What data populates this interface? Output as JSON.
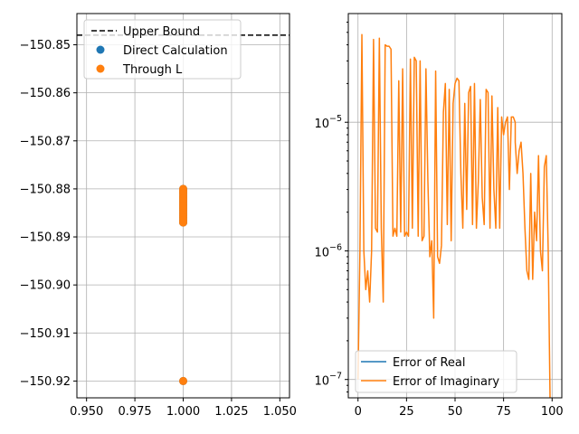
{
  "chart_data": [
    {
      "type": "scatter",
      "title": "",
      "xlabel": "",
      "ylabel": "",
      "xlim": [
        0.945,
        1.055
      ],
      "ylim": [
        -150.9235,
        -150.8435
      ],
      "xticks": [
        0.95,
        0.975,
        1.0,
        1.025,
        1.05
      ],
      "xtick_labels": [
        "0.950",
        "0.975",
        "1.000",
        "1.025",
        "1.050"
      ],
      "yticks": [
        -150.85,
        -150.86,
        -150.87,
        -150.88,
        -150.89,
        -150.9,
        -150.91,
        -150.92
      ],
      "ytick_labels": [
        "−150.85",
        "−150.86",
        "−150.87",
        "−150.88",
        "−150.89",
        "−150.90",
        "−150.91",
        "−150.92"
      ],
      "grid": true,
      "legend_position": "top-left",
      "reference_line": {
        "name": "Upper Bound",
        "y": -150.848,
        "color": "#000000",
        "style": "dashed"
      },
      "series": [
        {
          "name": "Direct Calculation",
          "color": "#1f77b4",
          "x": [
            1.0,
            1.0,
            1.0,
            1.0,
            1.0,
            1.0,
            1.0,
            1.0,
            1.0,
            1.0,
            1.0,
            1.0,
            1.0,
            1.0,
            1.0,
            1.0
          ],
          "y": [
            -150.88,
            -150.8805,
            -150.881,
            -150.8815,
            -150.882,
            -150.8825,
            -150.883,
            -150.8835,
            -150.884,
            -150.8845,
            -150.885,
            -150.8855,
            -150.886,
            -150.8865,
            -150.887,
            -150.92
          ]
        },
        {
          "name": "Through L",
          "color": "#ff7f0e",
          "x": [
            1.0,
            1.0,
            1.0,
            1.0,
            1.0,
            1.0,
            1.0,
            1.0,
            1.0,
            1.0,
            1.0,
            1.0,
            1.0,
            1.0,
            1.0,
            1.0
          ],
          "y": [
            -150.88,
            -150.8805,
            -150.881,
            -150.8815,
            -150.882,
            -150.8825,
            -150.883,
            -150.8835,
            -150.884,
            -150.8845,
            -150.885,
            -150.8855,
            -150.886,
            -150.8865,
            -150.887,
            -150.92
          ]
        }
      ]
    },
    {
      "type": "line",
      "title": "",
      "xlabel": "",
      "ylabel": "",
      "xlim": [
        -5,
        105
      ],
      "ylim": [
        7.2e-08,
        7e-05
      ],
      "yscale": "log",
      "xticks": [
        0,
        25,
        50,
        75,
        100
      ],
      "xtick_labels": [
        "0",
        "25",
        "50",
        "75",
        "100"
      ],
      "yticks": [
        1e-07,
        1e-06,
        1e-05
      ],
      "ytick_labels": [
        {
          "base": "10",
          "exp": "−7"
        },
        {
          "base": "10",
          "exp": "−6"
        },
        {
          "base": "10",
          "exp": "−5"
        }
      ],
      "grid": true,
      "legend_position": "bottom-left",
      "series": [
        {
          "name": "Error of Real",
          "color": "#1f77b4",
          "x": [],
          "y": []
        },
        {
          "name": "Error of Imaginary",
          "color": "#ff7f0e",
          "x": [
            0,
            1,
            2,
            3,
            4,
            5,
            6,
            7,
            8,
            9,
            10,
            11,
            12,
            13,
            14,
            15,
            16,
            17,
            18,
            19,
            20,
            21,
            22,
            23,
            24,
            25,
            26,
            27,
            28,
            29,
            30,
            31,
            32,
            33,
            34,
            35,
            36,
            37,
            38,
            39,
            40,
            41,
            42,
            43,
            44,
            45,
            46,
            47,
            48,
            49,
            50,
            51,
            52,
            53,
            54,
            55,
            56,
            57,
            58,
            59,
            60,
            61,
            62,
            63,
            64,
            65,
            66,
            67,
            68,
            69,
            70,
            71,
            72,
            73,
            74,
            75,
            76,
            77,
            78,
            79,
            80,
            81,
            81,
            82,
            83,
            84,
            85,
            86,
            87,
            88,
            89,
            90,
            91,
            92,
            93,
            94,
            95,
            96,
            97,
            98,
            99
          ],
          "y": [
            1e-07,
            1e-06,
            4.8e-05,
            1e-06,
            5e-07,
            7e-07,
            4e-07,
            1e-06,
            4.4e-05,
            1.5e-06,
            1.4e-06,
            4.5e-05,
            1.5e-06,
            4e-07,
            4e-05,
            3.9e-05,
            3.9e-05,
            3.7e-05,
            1.3e-06,
            1.5e-06,
            1.3e-06,
            2.1e-05,
            1.4e-06,
            2.6e-05,
            1.3e-06,
            1.4e-06,
            1.3e-06,
            3.1e-05,
            1.5e-06,
            3.2e-05,
            3e-05,
            1.3e-06,
            3e-05,
            1.2e-06,
            1.3e-06,
            2.6e-05,
            3.5e-06,
            9e-07,
            1.2e-06,
            3e-07,
            2.5e-05,
            9e-07,
            8e-07,
            1.1e-06,
            1.2e-05,
            2e-05,
            1.6e-06,
            1.8e-05,
            1.2e-06,
            1.4e-05,
            2e-05,
            2.2e-05,
            2.1e-05,
            4e-06,
            1.5e-06,
            1.4e-05,
            2.1e-06,
            1.7e-05,
            1.9e-05,
            1.6e-06,
            2e-05,
            1.5e-06,
            3.5e-06,
            1.5e-05,
            2.6e-06,
            1.6e-06,
            1.8e-05,
            1.7e-05,
            1.5e-06,
            1.6e-05,
            3e-06,
            1.5e-06,
            1.3e-05,
            1.5e-06,
            1.1e-05,
            8e-06,
            1e-05,
            1.1e-05,
            3e-06,
            1.1e-05,
            1.1e-05,
            1e-05,
            7e-06,
            4e-06,
            6e-06,
            7e-06,
            4e-06,
            1.5e-06,
            7e-07,
            6e-07,
            4e-06,
            6e-07,
            2e-06,
            1.2e-06,
            5.5e-06,
            1e-06,
            7e-07,
            4.5e-06,
            5.5e-06,
            1e-06,
            6e-08
          ]
        }
      ]
    }
  ]
}
